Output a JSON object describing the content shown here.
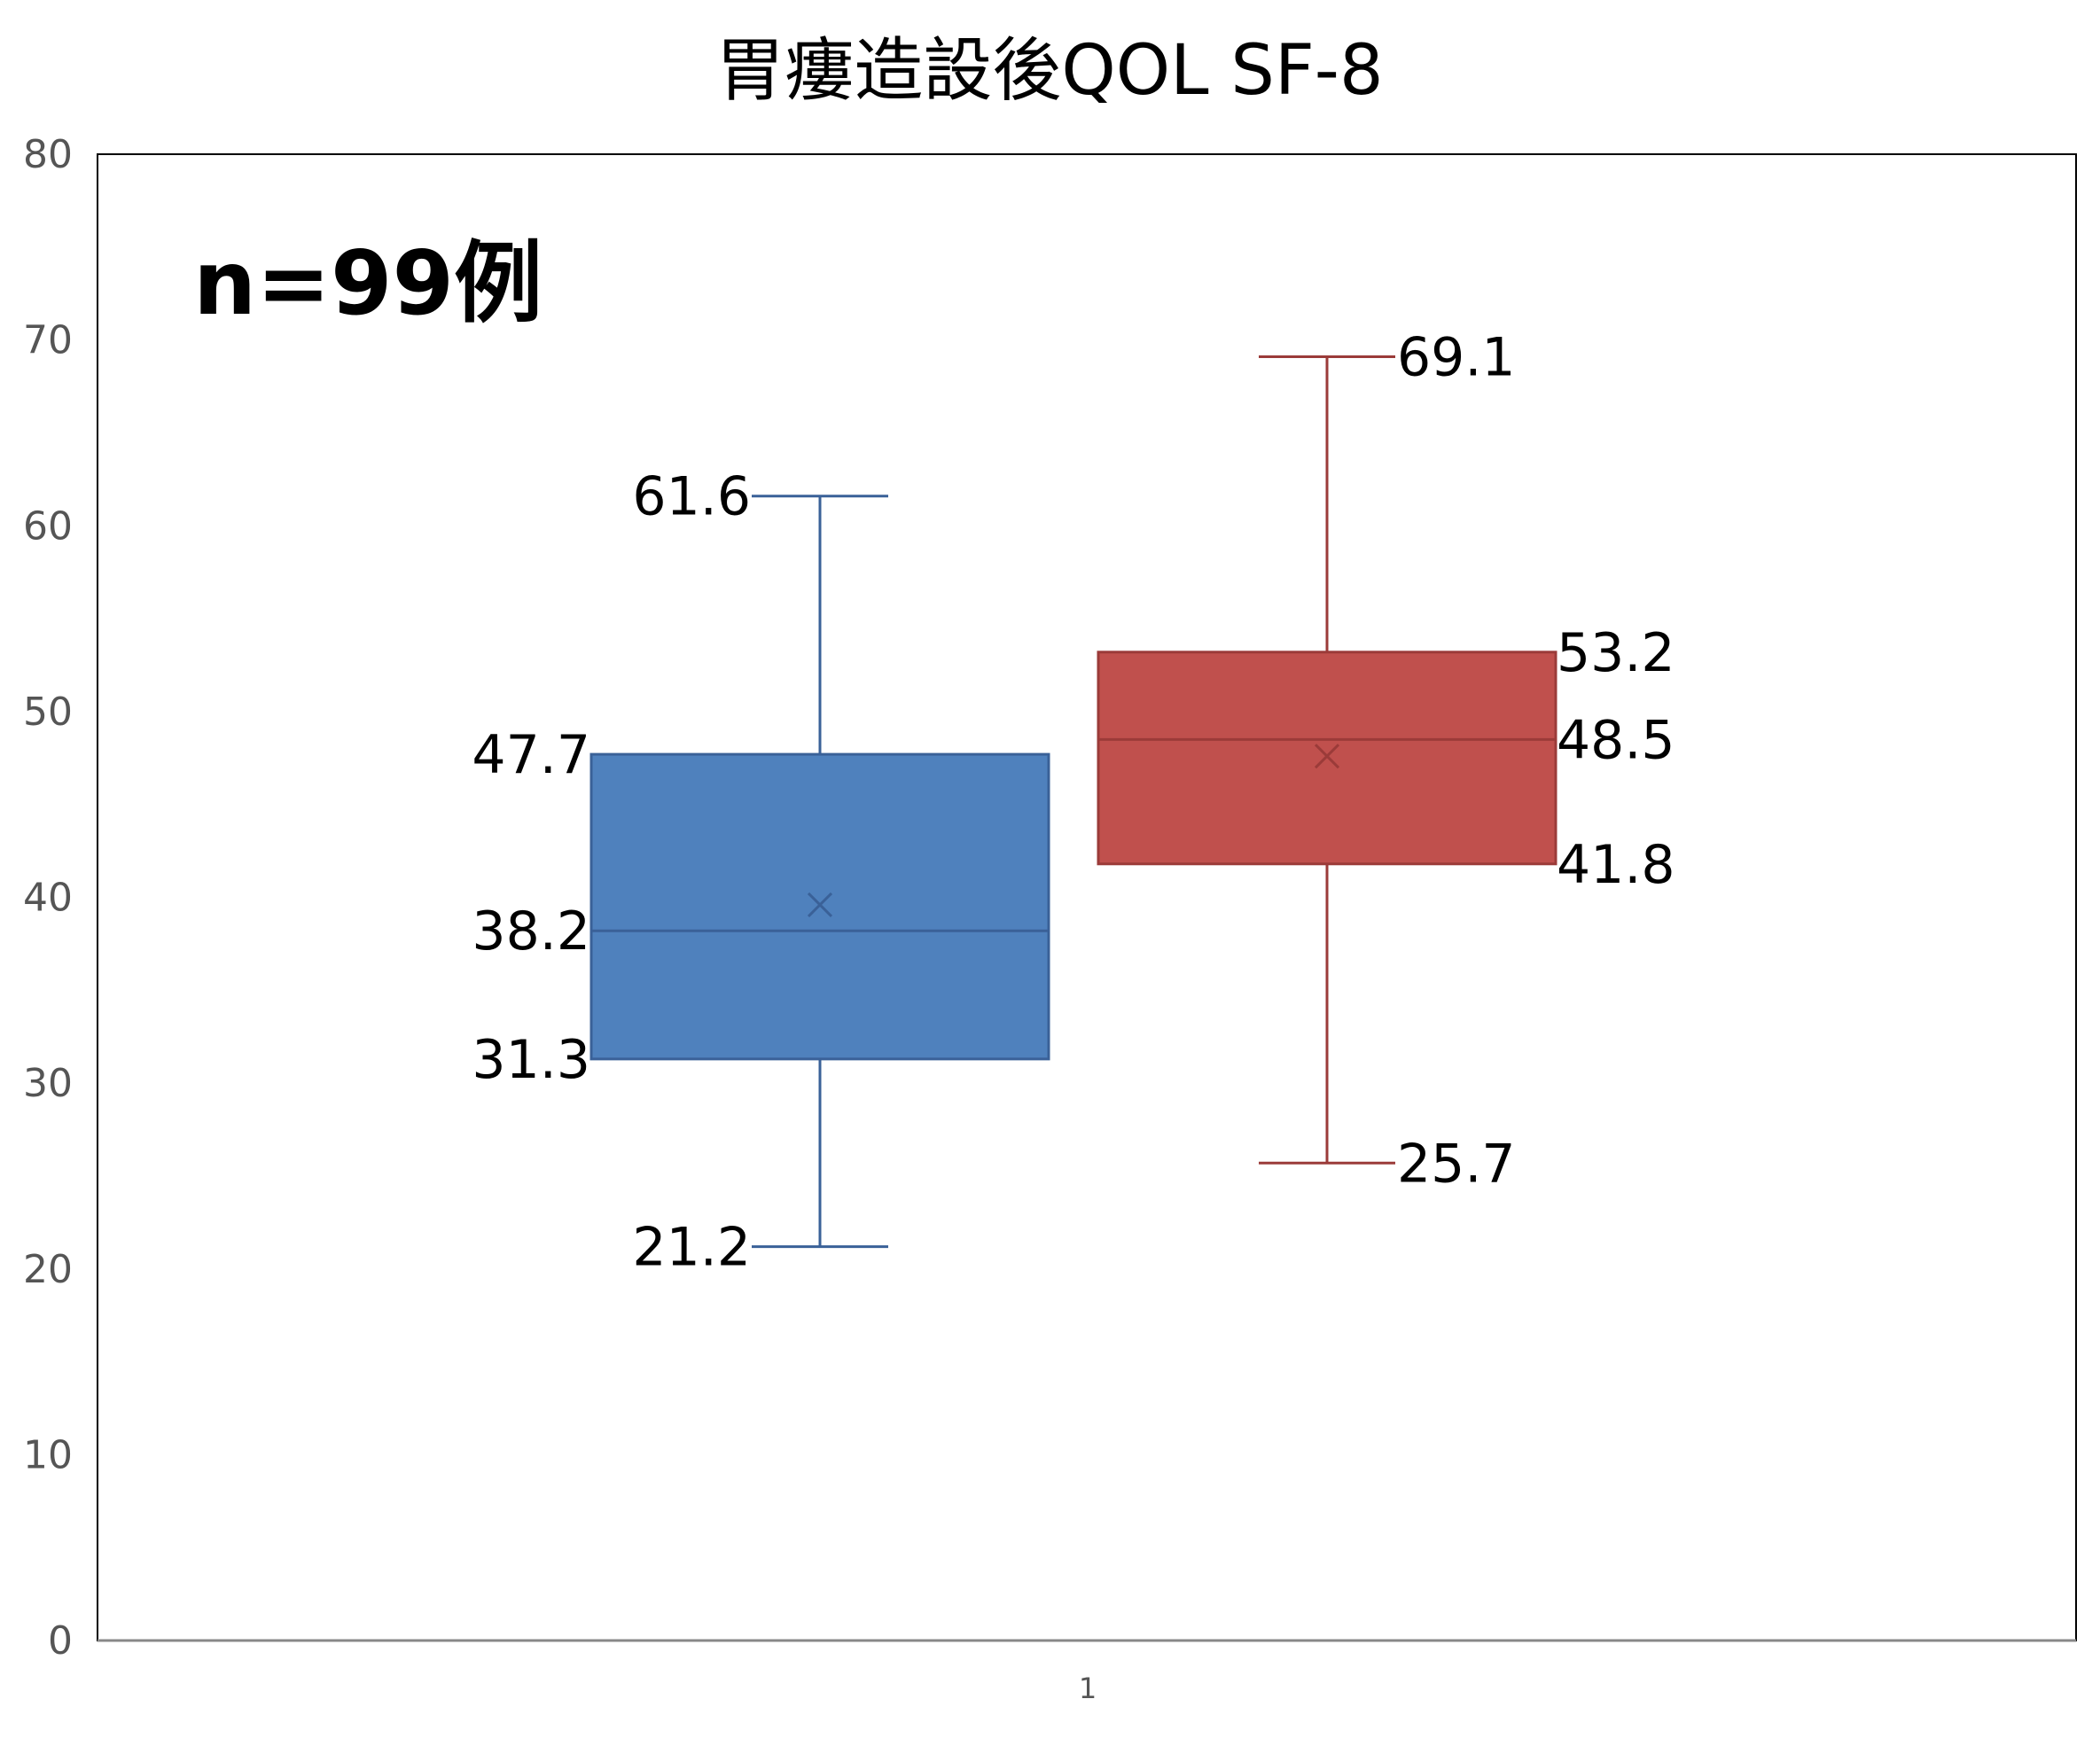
{
  "chart_data": {
    "type": "box",
    "title": "胃瘻造設後QOL SF-8",
    "annotation": "n=99例",
    "categories": [
      "1"
    ],
    "ylim": [
      0,
      80
    ],
    "yticks": [
      0,
      10,
      20,
      30,
      40,
      50,
      60,
      70,
      80
    ],
    "ytick_labels": [
      "0",
      "10",
      "20",
      "30",
      "40",
      "50",
      "60",
      "70",
      "80"
    ],
    "grid": false,
    "legend": "none",
    "series": [
      {
        "color": "#4f81bd",
        "edge_color": "#3a6198",
        "min": 21.2,
        "q1": 31.3,
        "median": 38.2,
        "q3": 47.7,
        "max": 61.6,
        "mean": 39.6,
        "labels": {
          "min": "21.2",
          "q1": "31.3",
          "median": "38.2",
          "q3": "47.7",
          "max": "61.6"
        }
      },
      {
        "color": "#c0504d",
        "edge_color": "#9b3b39",
        "min": 25.7,
        "q1": 41.8,
        "median": 48.5,
        "q3": 53.2,
        "max": 69.1,
        "mean": 47.6,
        "labels": {
          "min": "25.7",
          "q1": "41.8",
          "median": "48.5",
          "q3": "53.2",
          "max": "69.1"
        }
      }
    ]
  }
}
